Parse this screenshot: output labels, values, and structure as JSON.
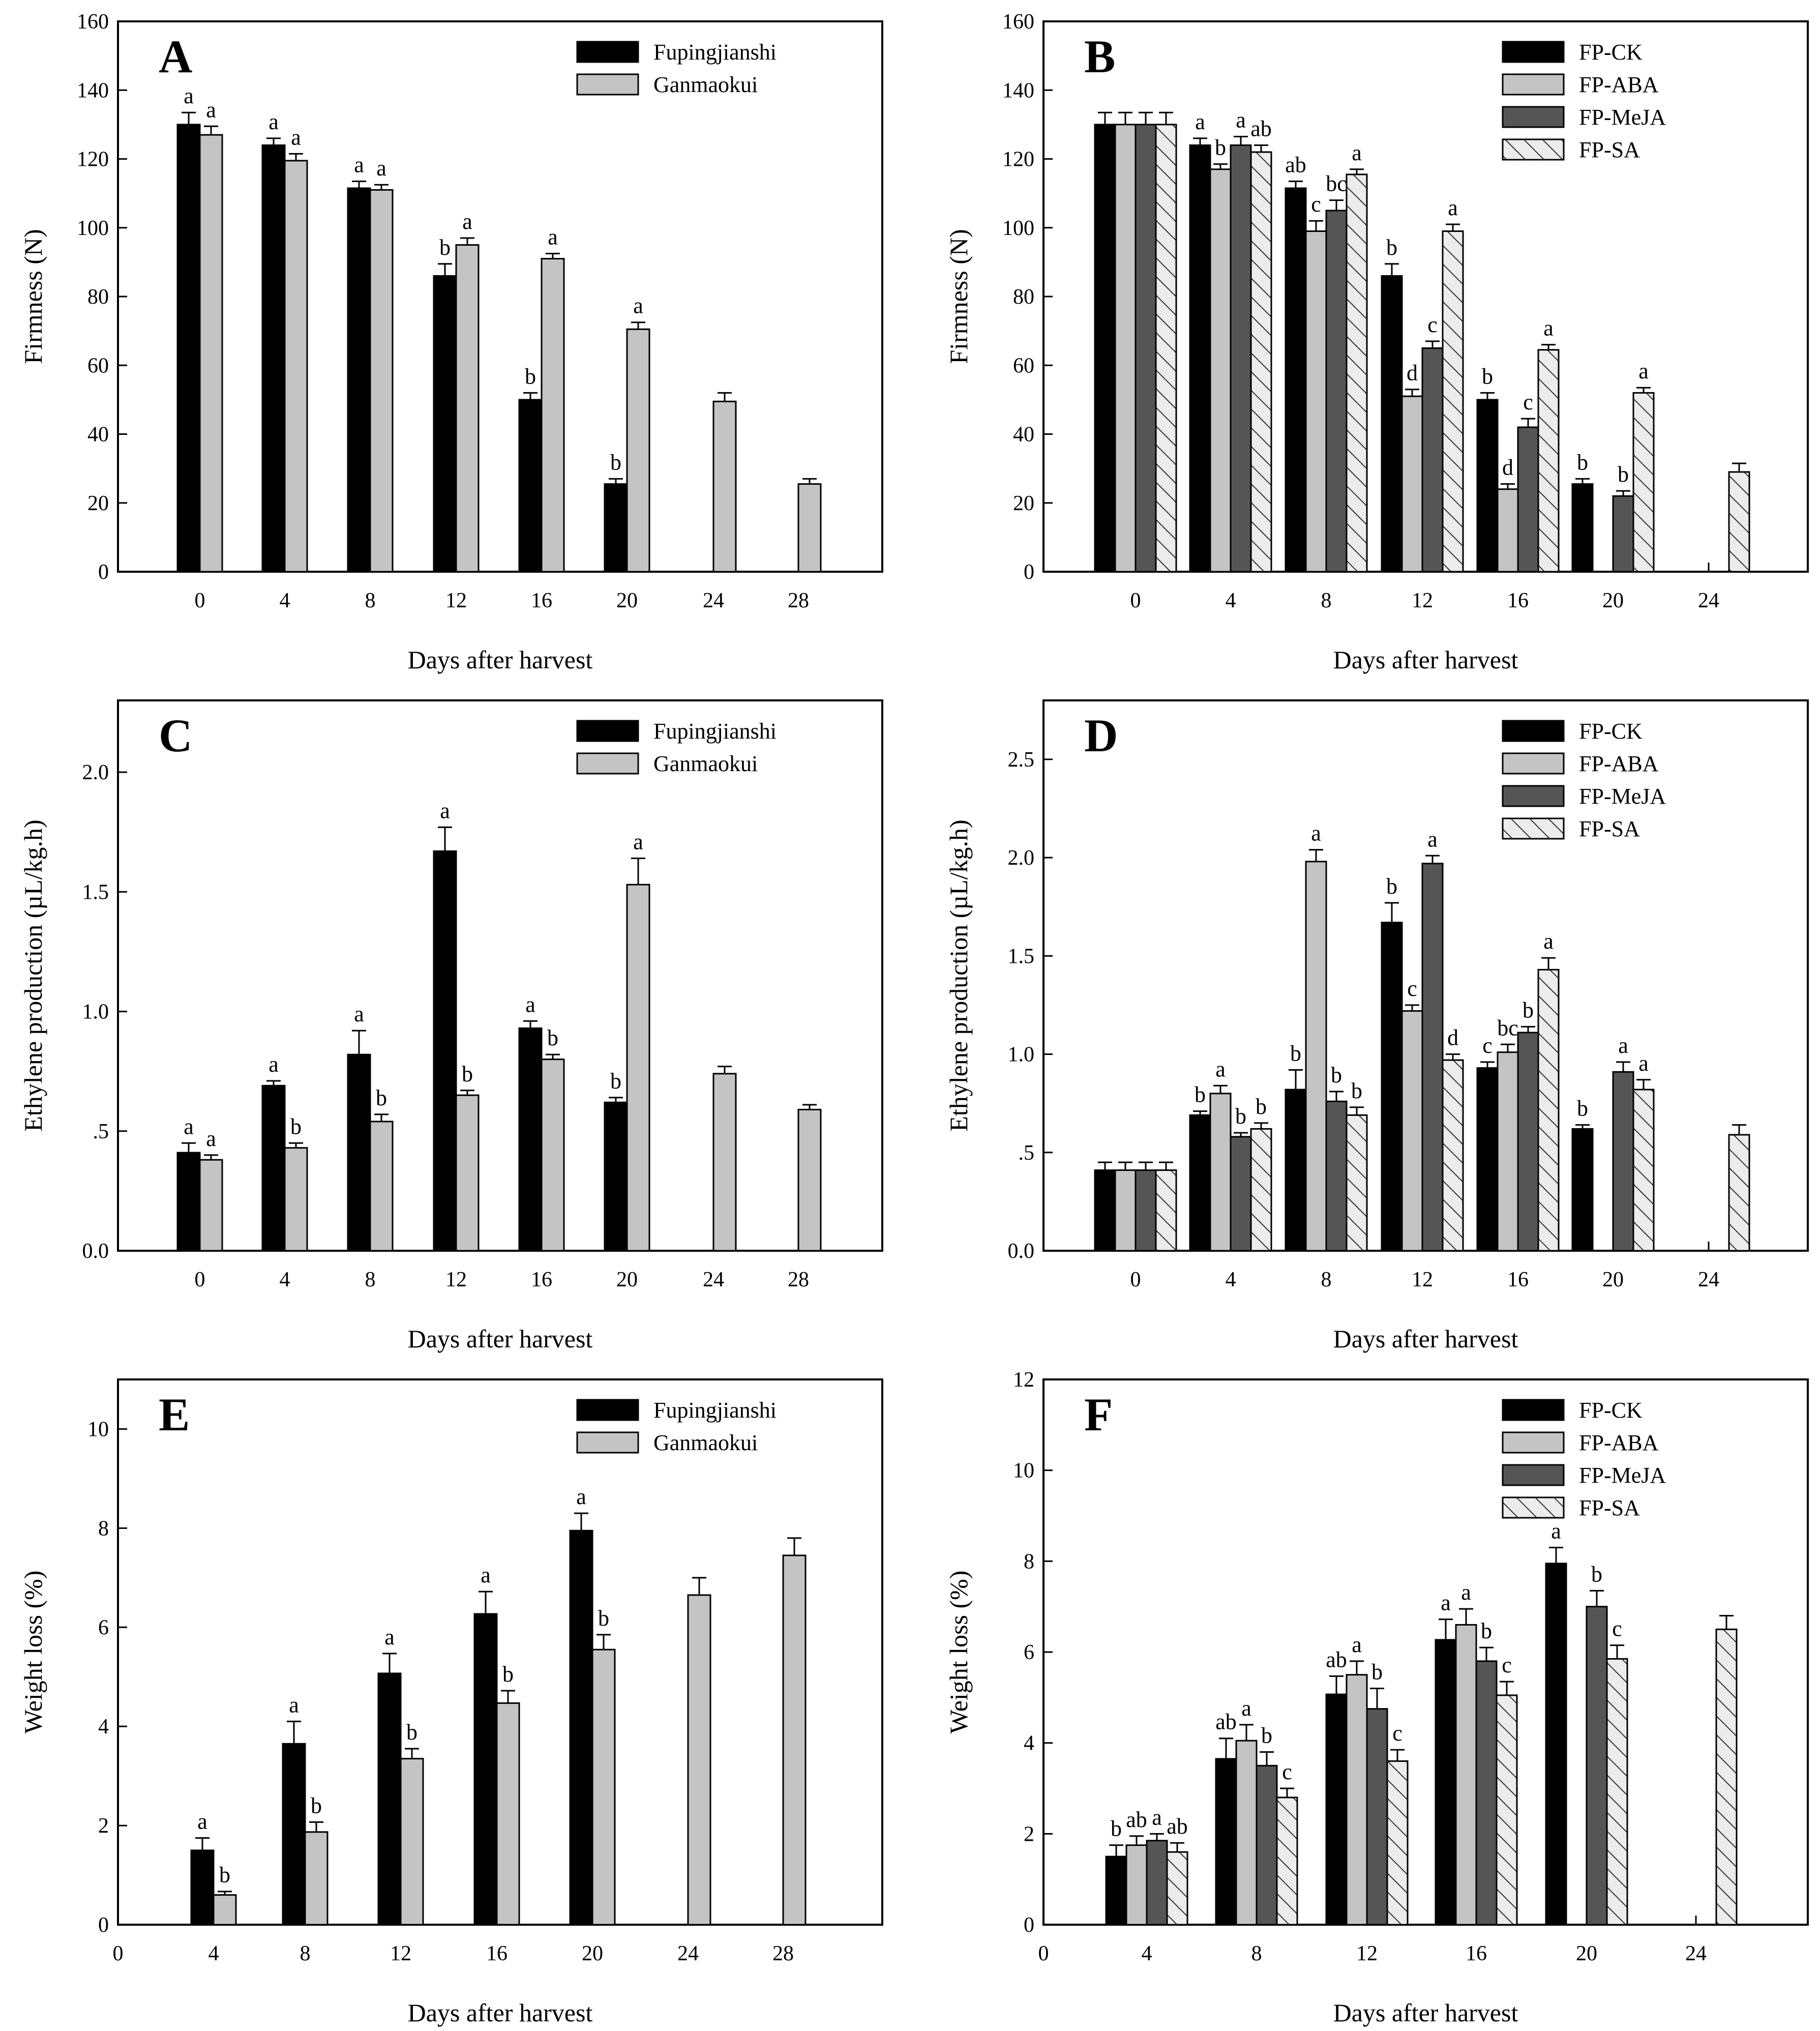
{
  "figure": {
    "xlabel_common": "Days after harvest"
  },
  "chart_data": [
    {
      "panel": "A",
      "type": "bar",
      "categories": [
        "0",
        "4",
        "8",
        "12",
        "16",
        "20",
        "24",
        "28"
      ],
      "xlabel": "Days after harvest",
      "ylabel": "Firmness (N)",
      "ylim": [
        0,
        160
      ],
      "yticks": [
        "0",
        "20",
        "40",
        "60",
        "80",
        "100",
        "120",
        "140",
        "160"
      ],
      "legend": "top-right",
      "series": [
        {
          "name": "Fupingjianshi",
          "style": "black",
          "values": [
            130,
            124,
            111.5,
            86,
            50,
            25.5,
            null,
            null
          ],
          "errors": [
            3.5,
            2,
            2,
            3.5,
            2,
            1.5,
            0,
            0
          ],
          "letters": [
            "a",
            "a",
            "a",
            "b",
            "b",
            "b",
            "",
            ""
          ]
        },
        {
          "name": "Ganmaokui",
          "style": "light",
          "values": [
            127,
            119.5,
            111,
            95,
            91,
            70.5,
            49.5,
            25.5
          ],
          "errors": [
            2.5,
            2,
            1.5,
            2,
            1.5,
            2,
            2.5,
            1.5
          ],
          "letters": [
            "a",
            "a",
            "a",
            "a",
            "a",
            "a",
            "",
            ""
          ]
        }
      ]
    },
    {
      "panel": "B",
      "type": "bar",
      "categories": [
        "0",
        "4",
        "8",
        "12",
        "16",
        "20",
        "24"
      ],
      "xlabel": "Days after harvest",
      "ylabel": "Firmness (N)",
      "ylim": [
        0,
        160
      ],
      "yticks": [
        "0",
        "20",
        "40",
        "60",
        "80",
        "100",
        "120",
        "140",
        "160"
      ],
      "legend": "top-right",
      "series": [
        {
          "name": "FP-CK",
          "style": "black",
          "values": [
            130,
            124,
            111.5,
            86,
            50,
            25.5,
            null
          ],
          "errors": [
            3.5,
            2,
            2,
            3.5,
            2,
            1.5,
            0
          ],
          "letters": [
            "",
            "a",
            "ab",
            "b",
            "b",
            "b",
            ""
          ]
        },
        {
          "name": "FP-ABA",
          "style": "light",
          "values": [
            130,
            117,
            99,
            51,
            24,
            null,
            null
          ],
          "errors": [
            3.5,
            1.5,
            3,
            2,
            1.5,
            0,
            0
          ],
          "letters": [
            "",
            "b",
            "c",
            "d",
            "d",
            "",
            ""
          ]
        },
        {
          "name": "FP-MeJA",
          "style": "dark",
          "values": [
            130,
            124,
            105,
            65,
            42,
            22,
            null
          ],
          "errors": [
            3.5,
            2.5,
            3,
            2,
            2.5,
            1.5,
            0
          ],
          "letters": [
            "",
            "a",
            "bc",
            "c",
            "c",
            "b",
            ""
          ]
        },
        {
          "name": "FP-SA",
          "style": "hatch",
          "values": [
            130,
            122,
            115.5,
            99,
            64.5,
            52,
            29
          ],
          "errors": [
            3.5,
            2,
            1.5,
            2,
            1.5,
            1.5,
            2.5
          ],
          "letters": [
            "",
            "ab",
            "a",
            "a",
            "a",
            "a",
            ""
          ]
        }
      ]
    },
    {
      "panel": "C",
      "type": "bar",
      "categories": [
        "0",
        "4",
        "8",
        "12",
        "16",
        "20",
        "24",
        "28"
      ],
      "xlabel": "Days after harvest",
      "ylabel": "Ethylene production (µL/kg.h)",
      "ylim": [
        0,
        2.3
      ],
      "yticks": [
        "0.0",
        ".5",
        "1.0",
        "1.5",
        "2.0"
      ],
      "legend": "top-right",
      "series": [
        {
          "name": "Fupingjianshi",
          "style": "black",
          "values": [
            0.41,
            0.69,
            0.82,
            1.67,
            0.93,
            0.62,
            null,
            null
          ],
          "errors": [
            0.04,
            0.02,
            0.1,
            0.1,
            0.03,
            0.02,
            0,
            0
          ],
          "letters": [
            "a",
            "a",
            "a",
            "a",
            "a",
            "b",
            "",
            ""
          ]
        },
        {
          "name": "Ganmaokui",
          "style": "light",
          "values": [
            0.38,
            0.43,
            0.54,
            0.65,
            0.8,
            1.53,
            0.74,
            0.59
          ],
          "errors": [
            0.02,
            0.02,
            0.03,
            0.02,
            0.02,
            0.11,
            0.03,
            0.02
          ],
          "letters": [
            "a",
            "b",
            "b",
            "b",
            "b",
            "a",
            "",
            ""
          ]
        }
      ]
    },
    {
      "panel": "D",
      "type": "bar",
      "categories": [
        "0",
        "4",
        "8",
        "12",
        "16",
        "20",
        "24"
      ],
      "xlabel": "Days after harvest",
      "ylabel": "Ethylene production (µL/kg.h)",
      "ylim": [
        0,
        2.8
      ],
      "yticks": [
        "0.0",
        ".5",
        "1.0",
        "1.5",
        "2.0",
        "2.5"
      ],
      "legend": "top-right",
      "series": [
        {
          "name": "FP-CK",
          "style": "black",
          "values": [
            0.41,
            0.69,
            0.82,
            1.67,
            0.93,
            0.62,
            null
          ],
          "errors": [
            0.04,
            0.02,
            0.1,
            0.1,
            0.03,
            0.02,
            0
          ],
          "letters": [
            "",
            "b",
            "b",
            "b",
            "c",
            "b",
            ""
          ]
        },
        {
          "name": "FP-ABA",
          "style": "light",
          "values": [
            0.41,
            0.8,
            1.98,
            1.22,
            1.01,
            null,
            null
          ],
          "errors": [
            0.04,
            0.04,
            0.06,
            0.03,
            0.04,
            0,
            0
          ],
          "letters": [
            "",
            "a",
            "a",
            "c",
            "bc",
            "",
            ""
          ]
        },
        {
          "name": "FP-MeJA",
          "style": "dark",
          "values": [
            0.41,
            0.58,
            0.76,
            1.97,
            1.11,
            0.91,
            null
          ],
          "errors": [
            0.04,
            0.02,
            0.05,
            0.04,
            0.03,
            0.05,
            0
          ],
          "letters": [
            "",
            "b",
            "b",
            "a",
            "b",
            "a",
            ""
          ]
        },
        {
          "name": "FP-SA",
          "style": "hatch",
          "values": [
            0.41,
            0.62,
            0.69,
            0.97,
            1.43,
            0.82,
            0.59
          ],
          "errors": [
            0.04,
            0.03,
            0.04,
            0.03,
            0.06,
            0.05,
            0.05
          ],
          "letters": [
            "",
            "b",
            "b",
            "d",
            "a",
            "a",
            ""
          ]
        }
      ]
    },
    {
      "panel": "E",
      "type": "bar",
      "categories": [
        "0",
        "4",
        "8",
        "12",
        "16",
        "20",
        "24",
        "28"
      ],
      "xlabel": "Days after harvest",
      "ylabel": "Weight loss (%)",
      "ylim": [
        0,
        11
      ],
      "yticks": [
        "0",
        "2",
        "4",
        "6",
        "8",
        "10"
      ],
      "legend": "top-right",
      "series": [
        {
          "name": "Fupingjianshi",
          "style": "black",
          "values": [
            null,
            1.5,
            3.65,
            5.07,
            6.27,
            7.95,
            null,
            null
          ],
          "errors": [
            0,
            0.25,
            0.45,
            0.4,
            0.45,
            0.35,
            0,
            0
          ],
          "letters": [
            "",
            "a",
            "a",
            "a",
            "a",
            "a",
            "",
            ""
          ]
        },
        {
          "name": "Ganmaokui",
          "style": "light",
          "values": [
            null,
            0.6,
            1.87,
            3.35,
            4.47,
            5.55,
            6.65,
            7.45
          ],
          "errors": [
            0,
            0.07,
            0.2,
            0.2,
            0.25,
            0.3,
            0.35,
            0.35
          ],
          "letters": [
            "",
            "b",
            "b",
            "b",
            "b",
            "b",
            "",
            ""
          ]
        }
      ]
    },
    {
      "panel": "F",
      "type": "bar",
      "categories": [
        "0",
        "4",
        "8",
        "12",
        "16",
        "20",
        "24"
      ],
      "xlabel": "Days after harvest",
      "ylabel": "Weight loss (%)",
      "ylim": [
        0,
        12
      ],
      "yticks": [
        "0",
        "2",
        "4",
        "6",
        "8",
        "10",
        "12"
      ],
      "legend": "top-right",
      "series": [
        {
          "name": "FP-CK",
          "style": "black",
          "values": [
            null,
            1.5,
            3.65,
            5.07,
            6.27,
            7.95,
            null
          ],
          "errors": [
            0,
            0.25,
            0.45,
            0.4,
            0.45,
            0.35,
            0
          ],
          "letters": [
            "",
            "b",
            "ab",
            "ab",
            "a",
            "a",
            ""
          ]
        },
        {
          "name": "FP-ABA",
          "style": "light",
          "values": [
            null,
            1.75,
            4.05,
            5.5,
            6.6,
            null,
            null
          ],
          "errors": [
            0,
            0.2,
            0.35,
            0.3,
            0.35,
            0,
            0
          ],
          "letters": [
            "",
            "ab",
            "a",
            "a",
            "a",
            "",
            ""
          ]
        },
        {
          "name": "FP-MeJA",
          "style": "dark",
          "values": [
            null,
            1.85,
            3.5,
            4.75,
            5.8,
            7.0,
            null
          ],
          "errors": [
            0,
            0.15,
            0.3,
            0.45,
            0.3,
            0.35,
            0
          ],
          "letters": [
            "",
            "a",
            "b",
            "b",
            "b",
            "b",
            ""
          ]
        },
        {
          "name": "FP-SA",
          "style": "hatch",
          "values": [
            null,
            1.6,
            2.8,
            3.6,
            5.05,
            5.85,
            6.5
          ],
          "errors": [
            0,
            0.2,
            0.2,
            0.25,
            0.3,
            0.3,
            0.3
          ],
          "letters": [
            "",
            "ab",
            "c",
            "c",
            "c",
            "c",
            ""
          ]
        }
      ]
    }
  ]
}
